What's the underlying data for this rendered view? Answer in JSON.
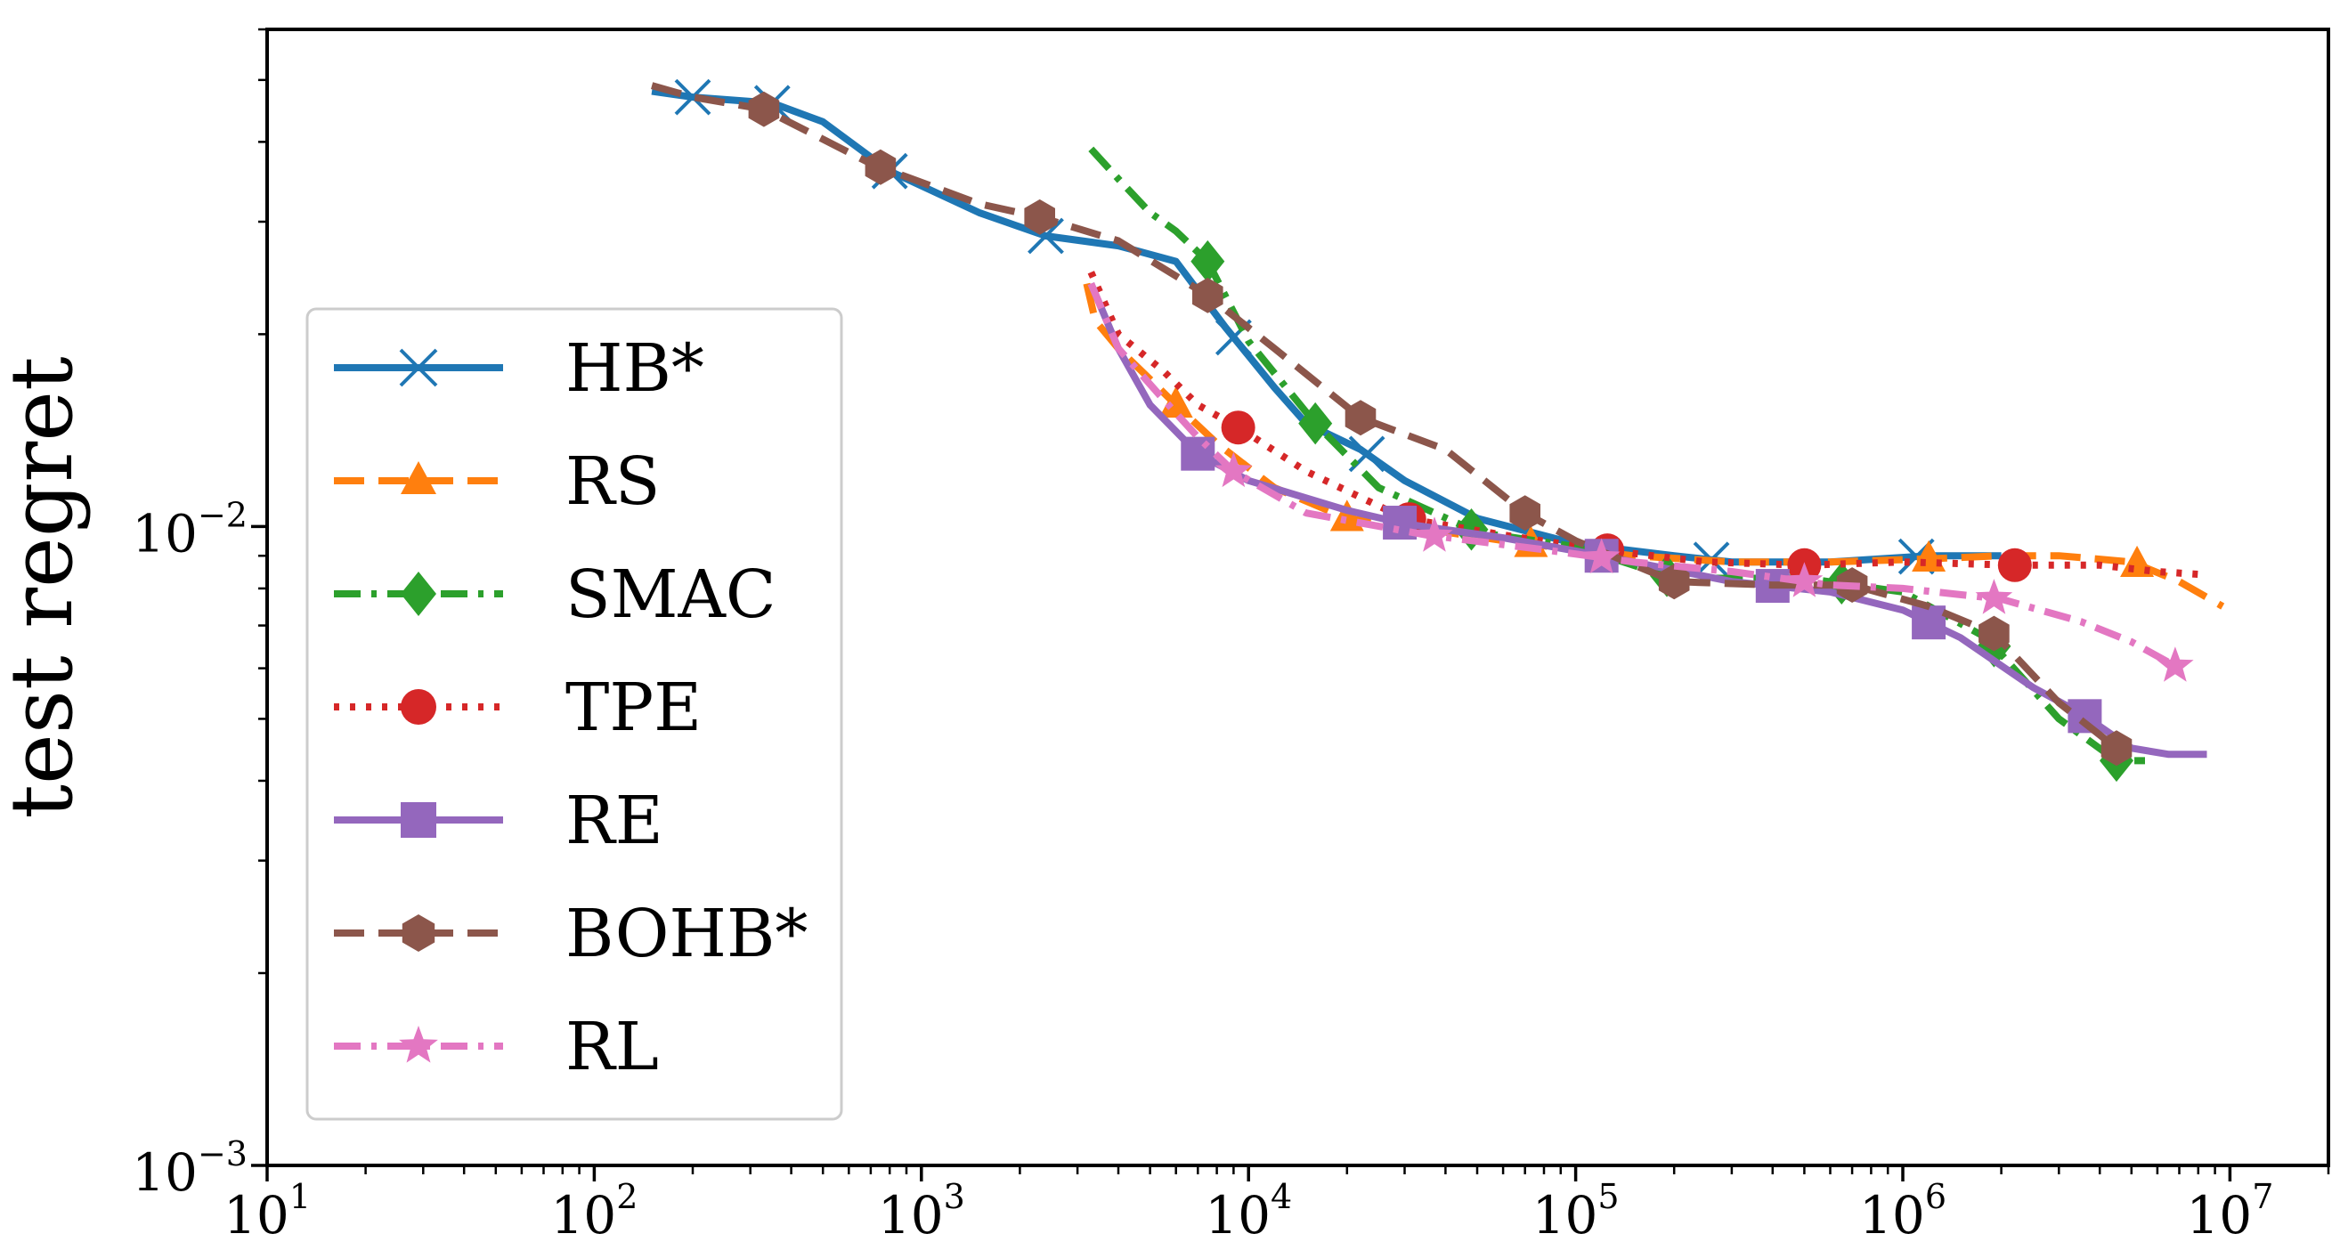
{
  "chart_data": {
    "type": "line",
    "title": "",
    "xlabel": "",
    "ylabel": "test regret",
    "xscale": "log",
    "yscale": "log",
    "xlim": [
      10,
      20000000
    ],
    "ylim": [
      0.001,
      0.06
    ],
    "x_ticks": [
      {
        "value": 10,
        "base": "10",
        "exp": "1"
      },
      {
        "value": 100,
        "base": "10",
        "exp": "2"
      },
      {
        "value": 1000,
        "base": "10",
        "exp": "3"
      },
      {
        "value": 10000,
        "base": "10",
        "exp": "4"
      },
      {
        "value": 100000,
        "base": "10",
        "exp": "5"
      },
      {
        "value": 1000000,
        "base": "10",
        "exp": "6"
      },
      {
        "value": 10000000,
        "base": "10",
        "exp": "7"
      }
    ],
    "y_ticks": [
      {
        "value": 0.01,
        "base": "10",
        "exp": "−2"
      },
      {
        "value": 0.001,
        "base": "10",
        "exp": "−3"
      }
    ],
    "grid": false,
    "legend_position": "left",
    "series": [
      {
        "name": "HB*",
        "color": "#1f77b4",
        "dash": "solid",
        "marker": "x",
        "x": [
          150,
          200,
          350,
          500,
          800,
          1500,
          2400,
          4000,
          6000,
          8500,
          12000,
          15000,
          22000,
          30000,
          50000,
          100000,
          200000,
          300000,
          600000,
          1200000,
          2000000
        ],
        "y": [
          0.048,
          0.047,
          0.046,
          0.043,
          0.036,
          0.031,
          0.0285,
          0.0275,
          0.026,
          0.0205,
          0.0165,
          0.0145,
          0.0132,
          0.0118,
          0.0103,
          0.0094,
          0.009,
          0.0088,
          0.0088,
          0.009,
          0.009
        ],
        "markers_x": [
          200,
          350,
          800,
          2400,
          9000,
          23000,
          260000,
          1100000
        ]
      },
      {
        "name": "RS",
        "color": "#ff7f0e",
        "dash": "dashed",
        "marker": "triangle",
        "x": [
          3200,
          3400,
          4000,
          5000,
          6000,
          8000,
          12000,
          20000,
          40000,
          70000,
          150000,
          300000,
          600000,
          1200000,
          2000000,
          3000000,
          5000000,
          7000000,
          9500000
        ],
        "y": [
          0.024,
          0.021,
          0.019,
          0.017,
          0.0155,
          0.0135,
          0.0115,
          0.0103,
          0.0098,
          0.0094,
          0.009,
          0.0088,
          0.0088,
          0.0089,
          0.009,
          0.009,
          0.0088,
          0.0082,
          0.0075
        ],
        "markers_x": [
          6000,
          20000,
          73000,
          1200000,
          5200000
        ]
      },
      {
        "name": "SMAC",
        "color": "#2ca02c",
        "dash": "dashdot",
        "marker": "diamond",
        "x": [
          3300,
          4000,
          5000,
          6000,
          7500,
          10000,
          16000,
          25000,
          50000,
          100000,
          200000,
          500000,
          1000000,
          1800000,
          3000000,
          4500000,
          5500000
        ],
        "y": [
          0.039,
          0.035,
          0.031,
          0.029,
          0.026,
          0.0195,
          0.0145,
          0.0115,
          0.0098,
          0.0093,
          0.0083,
          0.0083,
          0.0079,
          0.0067,
          0.005,
          0.0043,
          0.0043
        ],
        "markers_x": [
          7500,
          16000,
          48000,
          190000,
          650000,
          1900000,
          4500000
        ]
      },
      {
        "name": "TPE",
        "color": "#d62728",
        "dash": "dotted",
        "marker": "circle",
        "x": [
          3300,
          4000,
          5500,
          7000,
          9500,
          15000,
          30000,
          60000,
          120000,
          250000,
          500000,
          1000000,
          2200000,
          4000000,
          6000000,
          8500000
        ],
        "y": [
          0.025,
          0.02,
          0.0175,
          0.0155,
          0.0142,
          0.0122,
          0.0103,
          0.0097,
          0.0092,
          0.0088,
          0.0087,
          0.0088,
          0.0087,
          0.0087,
          0.0085,
          0.0084
        ],
        "markers_x": [
          9300,
          31000,
          125000,
          500000,
          2200000
        ]
      },
      {
        "name": "RE",
        "color": "#9467bd",
        "dash": "solid",
        "marker": "square",
        "x": [
          3300,
          4000,
          5000,
          7000,
          10000,
          20000,
          30000,
          60000,
          120000,
          300000,
          600000,
          1000000,
          1500000,
          2500000,
          3500000,
          5000000,
          6500000,
          8500000
        ],
        "y": [
          0.024,
          0.019,
          0.0155,
          0.013,
          0.0118,
          0.0106,
          0.0101,
          0.0096,
          0.009,
          0.0082,
          0.0079,
          0.0074,
          0.0067,
          0.0056,
          0.0051,
          0.0045,
          0.0044,
          0.0044
        ],
        "markers_x": [
          7000,
          29000,
          120000,
          400000,
          1200000,
          3600000
        ]
      },
      {
        "name": "BOHB*",
        "color": "#8c564b",
        "dash": "dashed",
        "marker": "hexagon",
        "x": [
          150,
          200,
          330,
          700,
          1500,
          2300,
          4000,
          7500,
          12000,
          22000,
          40000,
          70000,
          100000,
          200000,
          400000,
          700000,
          1200000,
          1900000,
          3000000,
          4500000
        ],
        "y": [
          0.049,
          0.047,
          0.045,
          0.037,
          0.032,
          0.0305,
          0.028,
          0.023,
          0.019,
          0.0148,
          0.0132,
          0.0105,
          0.0095,
          0.0082,
          0.0081,
          0.0081,
          0.0075,
          0.0068,
          0.0053,
          0.0045
        ],
        "markers_x": [
          330,
          750,
          2300,
          7500,
          22000,
          70000,
          200000,
          700000,
          1900000,
          4500000
        ]
      },
      {
        "name": "RL",
        "color": "#e377c2",
        "dash": "dashdot",
        "marker": "star",
        "x": [
          3300,
          4000,
          5500,
          7000,
          9000,
          15000,
          35000,
          80000,
          150000,
          300000,
          600000,
          1000000,
          2000000,
          3500000,
          5000000,
          7000000
        ],
        "y": [
          0.024,
          0.019,
          0.0158,
          0.0138,
          0.0122,
          0.0105,
          0.0097,
          0.0092,
          0.0088,
          0.0085,
          0.0081,
          0.008,
          0.0077,
          0.0071,
          0.0066,
          0.006
        ],
        "markers_x": [
          9000,
          37000,
          120000,
          500000,
          1900000,
          6800000
        ]
      }
    ]
  }
}
